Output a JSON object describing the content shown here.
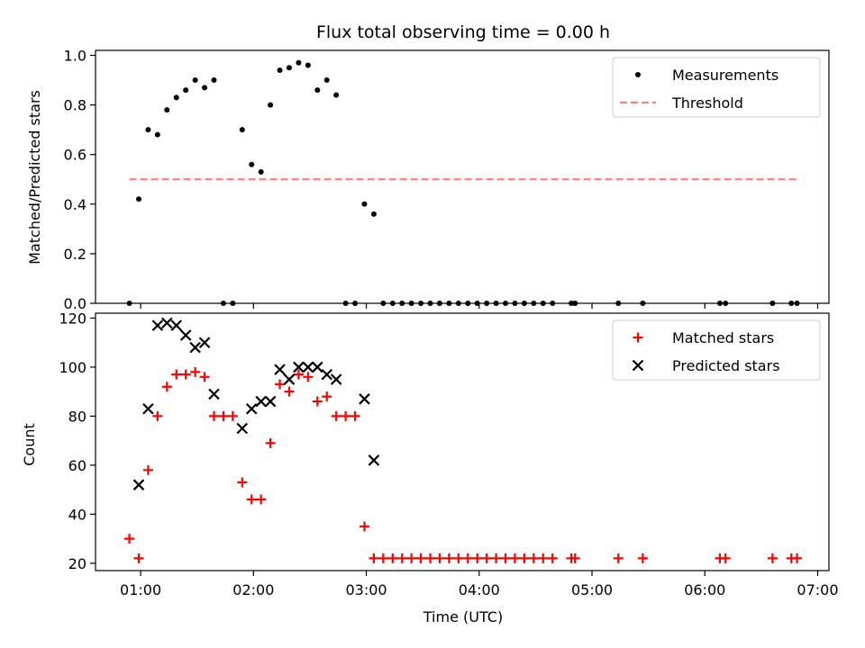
{
  "chart_data": [
    {
      "type": "scatter",
      "panel": "top",
      "title": "Flux total observing time = 0.00 h",
      "ylabel": "Matched/Predicted stars",
      "xlim": [
        "00:36",
        "07:06"
      ],
      "ylim": [
        0,
        1.02
      ],
      "yticks": [
        "0.0",
        "0.2",
        "0.4",
        "0.6",
        "0.8",
        "1.0"
      ],
      "yticks_values": [
        0,
        0.2,
        0.4,
        0.6,
        0.8,
        1.0
      ],
      "legend_position": "top-right",
      "series": [
        {
          "name": "Measurements",
          "marker": "dot",
          "color": "#000000",
          "x": [
            "00:54",
            "00:59",
            "01:04",
            "01:09",
            "01:14",
            "01:19",
            "01:24",
            "01:29",
            "01:34",
            "01:39",
            "01:44",
            "01:49",
            "01:54",
            "01:59",
            "02:04",
            "02:09",
            "02:14",
            "02:19",
            "02:24",
            "02:29",
            "02:34",
            "02:39",
            "02:44",
            "02:49",
            "02:54",
            "02:59",
            "03:04",
            "03:09",
            "03:14",
            "03:19",
            "03:24",
            "03:29",
            "03:34",
            "03:39",
            "03:44",
            "03:49",
            "03:54",
            "03:59",
            "04:04",
            "04:09",
            "04:14",
            "04:19",
            "04:24",
            "04:29",
            "04:34",
            "04:39",
            "04:49",
            "04:51",
            "05:14",
            "05:27",
            "06:08",
            "06:11",
            "06:36",
            "06:46",
            "06:49"
          ],
          "y": [
            0.0,
            0.42,
            0.7,
            0.68,
            0.78,
            0.83,
            0.86,
            0.9,
            0.87,
            0.9,
            0.0,
            0.0,
            0.7,
            0.56,
            0.53,
            0.8,
            0.94,
            0.95,
            0.97,
            0.96,
            0.86,
            0.9,
            0.84,
            0.0,
            0.0,
            0.4,
            0.36,
            0.0,
            0.0,
            0.0,
            0.0,
            0.0,
            0.0,
            0.0,
            0.0,
            0.0,
            0.0,
            0.0,
            0.0,
            0.0,
            0.0,
            0.0,
            0.0,
            0.0,
            0.0,
            0.0,
            0.0,
            0.0,
            0.0,
            0.0,
            0.0,
            0.0,
            0.0,
            0.0,
            0.0
          ]
        },
        {
          "name": "Threshold",
          "type": "line",
          "style": "dashed",
          "color": "#ff8080",
          "x": [
            "00:54",
            "06:49"
          ],
          "y": [
            0.5,
            0.5
          ]
        }
      ]
    },
    {
      "type": "scatter",
      "panel": "bottom",
      "xlabel": "Time (UTC)",
      "ylabel": "Count",
      "xlim": [
        "00:36",
        "07:06"
      ],
      "ylim": [
        17,
        122
      ],
      "yticks": [
        "20",
        "40",
        "60",
        "80",
        "100",
        "120"
      ],
      "yticks_values": [
        20,
        40,
        60,
        80,
        100,
        120
      ],
      "xticks": [
        "01:00",
        "02:00",
        "03:00",
        "04:00",
        "05:00",
        "06:00",
        "07:00"
      ],
      "xticks_values": [
        "01:00",
        "02:00",
        "03:00",
        "04:00",
        "05:00",
        "06:00",
        "07:00"
      ],
      "legend_position": "top-right",
      "series": [
        {
          "name": "Matched stars",
          "marker": "plus",
          "color": "#ff0000",
          "x": [
            "00:54",
            "00:59",
            "01:04",
            "01:09",
            "01:14",
            "01:19",
            "01:24",
            "01:29",
            "01:34",
            "01:39",
            "01:44",
            "01:49",
            "01:54",
            "01:59",
            "02:04",
            "02:09",
            "02:14",
            "02:19",
            "02:24",
            "02:29",
            "02:34",
            "02:39",
            "02:44",
            "02:49",
            "02:54",
            "02:59",
            "03:04",
            "03:09",
            "03:14",
            "03:19",
            "03:24",
            "03:29",
            "03:34",
            "03:39",
            "03:44",
            "03:49",
            "03:54",
            "03:59",
            "04:04",
            "04:09",
            "04:14",
            "04:19",
            "04:24",
            "04:29",
            "04:34",
            "04:39",
            "04:49",
            "04:51",
            "05:14",
            "05:27",
            "06:08",
            "06:11",
            "06:36",
            "06:46",
            "06:49"
          ],
          "y": [
            30,
            22,
            58,
            80,
            92,
            97,
            97,
            98,
            96,
            80,
            80,
            80,
            53,
            46,
            46,
            69,
            93,
            90,
            97,
            96,
            86,
            88,
            80,
            80,
            80,
            35,
            22,
            22,
            22,
            22,
            22,
            22,
            22,
            22,
            22,
            22,
            22,
            22,
            22,
            22,
            22,
            22,
            22,
            22,
            22,
            22,
            22,
            22,
            22,
            22,
            22,
            22,
            22,
            22,
            22
          ]
        },
        {
          "name": "Predicted stars",
          "marker": "x",
          "color": "#000000",
          "x": [
            "00:59",
            "01:04",
            "01:09",
            "01:14",
            "01:19",
            "01:24",
            "01:29",
            "01:34",
            "01:39",
            "01:54",
            "01:59",
            "02:04",
            "02:09",
            "02:14",
            "02:19",
            "02:24",
            "02:29",
            "02:34",
            "02:39",
            "02:44",
            "02:59",
            "03:04"
          ],
          "y": [
            52,
            83,
            117,
            118,
            117,
            113,
            108,
            110,
            89,
            75,
            83,
            86,
            86,
            99,
            95,
            100,
            100,
            100,
            97,
            95,
            87,
            62
          ]
        }
      ]
    }
  ]
}
